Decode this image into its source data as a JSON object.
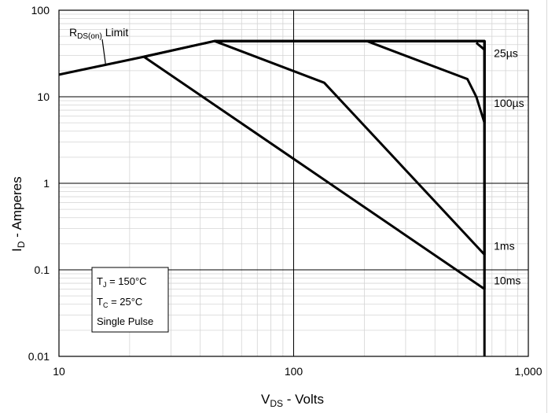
{
  "chart_data": {
    "type": "line",
    "xscale": "log",
    "yscale": "log",
    "xlim": [
      10,
      1000
    ],
    "ylim": [
      0.01,
      100
    ],
    "grid": true,
    "x_ticks": [
      {
        "v": 10,
        "label": "10"
      },
      {
        "v": 100,
        "label": "100"
      },
      {
        "v": 1000,
        "label": "1,000"
      }
    ],
    "y_ticks": [
      {
        "v": 100,
        "label": "100"
      },
      {
        "v": 10,
        "label": "10"
      },
      {
        "v": 1,
        "label": "1"
      },
      {
        "v": 0.1,
        "label": "0.1"
      },
      {
        "v": 0.01,
        "label": "0.01"
      }
    ],
    "xlabel": {
      "main": "V",
      "sub": "DS",
      "rest": " - Volts"
    },
    "ylabel": {
      "main": "I",
      "sub": "D",
      "rest": " - Amperes"
    },
    "rds_label": {
      "main": "R",
      "sub": "DS(on)",
      "rest": " Limit"
    },
    "rds_limit": [
      [
        10,
        18
      ],
      [
        23,
        29
      ],
      [
        46,
        44
      ]
    ],
    "series": [
      {
        "name": "25µs",
        "points": [
          [
            46,
            44
          ],
          [
            650,
            44
          ],
          [
            650,
            35
          ],
          [
            600,
            42
          ]
        ]
      },
      {
        "name": "100µs",
        "points": [
          [
            46,
            44
          ],
          [
            650,
            44
          ],
          [
            650,
            5
          ],
          [
            600,
            10
          ],
          [
            550,
            16
          ],
          [
            205,
            44
          ]
        ]
      },
      {
        "name": "1ms",
        "points": [
          [
            46,
            44
          ],
          [
            650,
            44
          ],
          [
            650,
            0.15
          ],
          [
            135,
            14.5
          ],
          [
            46,
            44
          ]
        ]
      },
      {
        "name": "10ms",
        "points": [
          [
            23,
            29
          ],
          [
            46,
            44
          ],
          [
            650,
            44
          ],
          [
            650,
            0.06
          ],
          [
            23,
            29
          ]
        ]
      }
    ],
    "vertical_limit": [
      [
        650,
        0.01
      ],
      [
        650,
        44
      ]
    ],
    "conditions": [
      {
        "main": "T",
        "sub": "J",
        "rest": " = 150°C"
      },
      {
        "main": "T",
        "sub": "C",
        "rest": " = 25°C"
      },
      {
        "main": "Single Pulse",
        "sub": "",
        "rest": ""
      }
    ]
  }
}
